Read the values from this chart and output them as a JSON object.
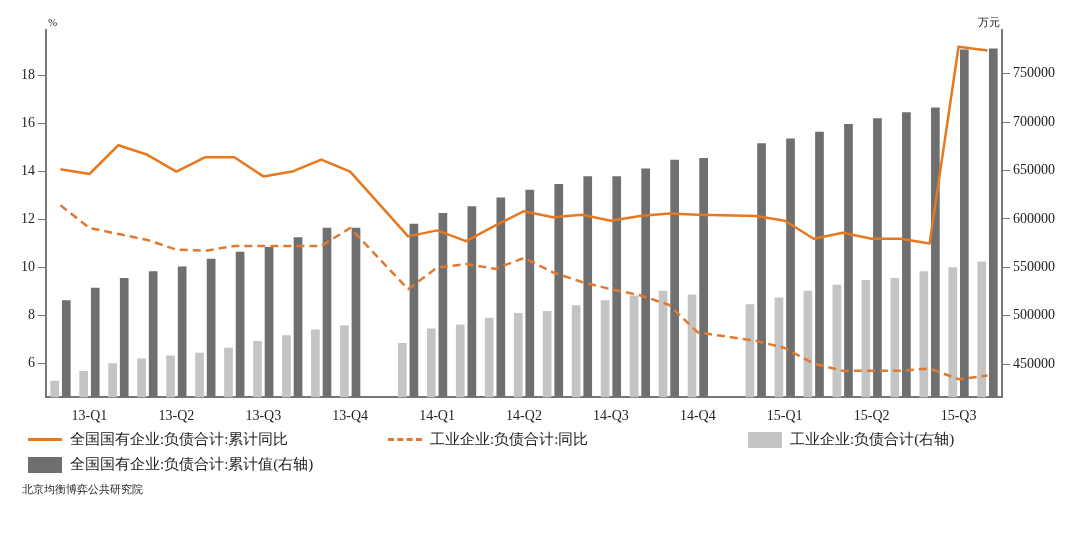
{
  "chart_data": {
    "type": "bar",
    "ylabel": "%",
    "y2label": "万元",
    "categories": [
      null,
      "13-Q1",
      null,
      null,
      "13-Q2",
      null,
      null,
      "13-Q3",
      null,
      null,
      "13-Q4",
      null,
      null,
      "14-Q1",
      null,
      null,
      "14-Q2",
      null,
      null,
      "14-Q3",
      null,
      null,
      "14-Q4",
      null,
      null,
      "15-Q1",
      null,
      null,
      "15-Q2",
      null,
      null,
      "15-Q3",
      null
    ],
    "series": [
      {
        "name": "全国国有企业:负债合计:累计同比",
        "type": "line",
        "line_style": "solid",
        "color": "#e8781e",
        "values": [
          14.1,
          13.9,
          15.1,
          14.7,
          14.0,
          14.6,
          14.6,
          13.8,
          14.0,
          14.5,
          14.0,
          null,
          11.3,
          11.55,
          11.1,
          11.75,
          12.35,
          12.1,
          12.2,
          11.95,
          12.15,
          12.25,
          12.2,
          null,
          12.15,
          11.95,
          11.2,
          11.45,
          11.2,
          11.2,
          11.0,
          19.2,
          19.05
        ]
      },
      {
        "name": "工业企业:负债合计:同比",
        "type": "line",
        "line_style": "dashed",
        "color": "#e07a30",
        "values": [
          12.6,
          11.65,
          11.4,
          11.15,
          10.75,
          10.7,
          10.9,
          10.9,
          10.9,
          10.9,
          11.65,
          null,
          9.1,
          10.0,
          10.15,
          9.95,
          10.4,
          9.8,
          9.4,
          9.1,
          8.85,
          8.45,
          7.3,
          null,
          6.95,
          6.65,
          6.0,
          5.7,
          5.7,
          5.7,
          5.8,
          5.35,
          5.5
        ]
      },
      {
        "name": "工业企业:负债合计(右轴)",
        "axis": "y2",
        "color": "#c4c4c4",
        "values": [
          433000,
          443000,
          451000,
          456000,
          459000,
          462000,
          467000,
          474000,
          480000,
          486000,
          490000,
          null,
          472000,
          487000,
          491000,
          498000,
          503000,
          505000,
          511000,
          516000,
          521000,
          526000,
          522000,
          null,
          512000,
          519000,
          526000,
          532000,
          537000,
          539000,
          546000,
          550000,
          556000
        ]
      },
      {
        "name": "全国国有企业:负债合计:累计值(右轴)",
        "axis": "y2",
        "color": "#6f6f6f",
        "values": [
          516000,
          529000,
          539000,
          546000,
          551000,
          559000,
          566000,
          571000,
          581000,
          591000,
          591000,
          null,
          595000,
          606000,
          613000,
          622000,
          630000,
          636000,
          644000,
          644000,
          652000,
          661000,
          663000,
          null,
          678000,
          683000,
          690000,
          698000,
          704000,
          710000,
          715000,
          775000,
          776000
        ]
      }
    ],
    "ylim": [
      4.6,
      19.9
    ],
    "yticks": [
      6,
      8,
      10,
      12,
      14,
      16,
      18
    ],
    "y2lim": [
      416000,
      795000
    ],
    "y2ticks": [
      450000,
      500000,
      550000,
      600000,
      650000,
      700000,
      750000
    ],
    "grid": false,
    "legend": "bottom",
    "annotations": [
      "北京均衡博弈公共研究院"
    ]
  }
}
